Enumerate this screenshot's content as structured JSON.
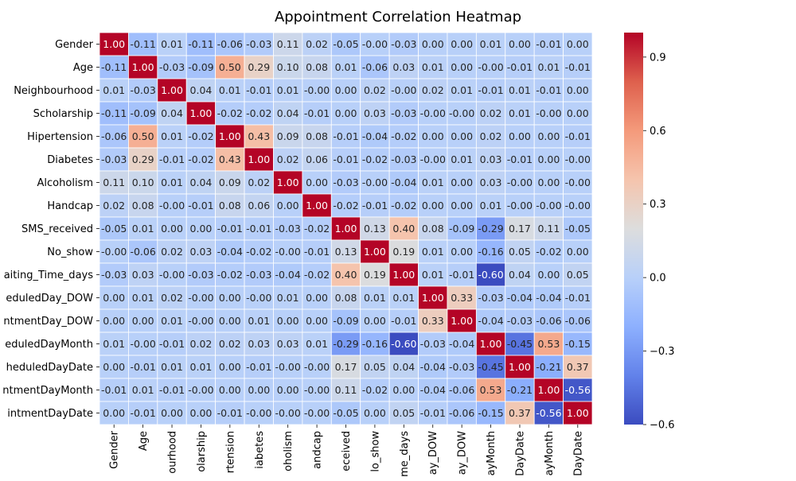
{
  "chart_data": {
    "type": "heatmap",
    "title": "Appointment Correlation Heatmap",
    "xlabel": "",
    "ylabel": "",
    "row_labels": [
      "Gender",
      "Age",
      "Neighbourhood",
      "Scholarship",
      "Hipertension",
      "Diabetes",
      "Alcoholism",
      "Handcap",
      "SMS_received",
      "No_show",
      "aiting_Time_days",
      "eduledDay_DOW",
      "ntmentDay_DOW",
      "eduledDayMonth",
      "heduledDayDate",
      "ntmentDayMonth",
      "intmentDayDate"
    ],
    "col_labels": [
      "Gender",
      "Age",
      "ourhood",
      "olarship",
      "rtension",
      "iabetes",
      "oholism",
      "andcap",
      "eceived",
      "lo_show",
      "me_days",
      "ay_DOW",
      "ay_DOW",
      "ayMonth",
      "DayDate",
      "ayMonth",
      "DayDate"
    ],
    "values": [
      [
        1.0,
        -0.11,
        0.01,
        -0.11,
        -0.06,
        -0.03,
        0.11,
        0.02,
        -0.05,
        -0.0,
        -0.03,
        0.0,
        0.0,
        0.01,
        0.0,
        -0.01,
        0.0
      ],
      [
        -0.11,
        1.0,
        -0.03,
        -0.09,
        0.5,
        0.29,
        0.1,
        0.08,
        0.01,
        -0.06,
        0.03,
        0.01,
        0.0,
        -0.0,
        -0.01,
        0.01,
        -0.01
      ],
      [
        0.01,
        -0.03,
        1.0,
        0.04,
        0.01,
        -0.01,
        0.01,
        -0.0,
        0.0,
        0.02,
        -0.0,
        0.02,
        0.01,
        -0.01,
        0.01,
        -0.01,
        0.0
      ],
      [
        -0.11,
        -0.09,
        0.04,
        1.0,
        -0.02,
        -0.02,
        0.04,
        -0.01,
        0.0,
        0.03,
        -0.03,
        -0.0,
        -0.0,
        0.02,
        0.01,
        -0.0,
        0.0
      ],
      [
        -0.06,
        0.5,
        0.01,
        -0.02,
        1.0,
        0.43,
        0.09,
        0.08,
        -0.01,
        -0.04,
        -0.02,
        0.0,
        0.0,
        0.02,
        0.0,
        0.0,
        -0.01
      ],
      [
        -0.03,
        0.29,
        -0.01,
        -0.02,
        0.43,
        1.0,
        0.02,
        0.06,
        -0.01,
        -0.02,
        -0.03,
        -0.0,
        0.01,
        0.03,
        -0.01,
        0.0,
        -0.0
      ],
      [
        0.11,
        0.1,
        0.01,
        0.04,
        0.09,
        0.02,
        1.0,
        0.0,
        -0.03,
        -0.0,
        -0.04,
        0.01,
        0.0,
        0.03,
        -0.0,
        0.0,
        -0.0
      ],
      [
        0.02,
        0.08,
        -0.0,
        -0.01,
        0.08,
        0.06,
        0.0,
        1.0,
        -0.02,
        -0.01,
        -0.02,
        0.0,
        0.0,
        0.01,
        -0.0,
        -0.0,
        -0.0
      ],
      [
        -0.05,
        0.01,
        0.0,
        0.0,
        -0.01,
        -0.01,
        -0.03,
        -0.02,
        1.0,
        0.13,
        0.4,
        0.08,
        -0.09,
        -0.29,
        0.17,
        0.11,
        -0.05
      ],
      [
        -0.0,
        -0.06,
        0.02,
        0.03,
        -0.04,
        -0.02,
        -0.0,
        -0.01,
        0.13,
        1.0,
        0.19,
        0.01,
        0.0,
        -0.16,
        0.05,
        -0.02,
        0.0
      ],
      [
        -0.03,
        0.03,
        -0.0,
        -0.03,
        -0.02,
        -0.03,
        -0.04,
        -0.02,
        0.4,
        0.19,
        1.0,
        0.01,
        -0.01,
        -0.6,
        0.04,
        0.0,
        0.05
      ],
      [
        0.0,
        0.01,
        0.02,
        -0.0,
        0.0,
        -0.0,
        0.01,
        0.0,
        0.08,
        0.01,
        0.01,
        1.0,
        0.33,
        -0.03,
        -0.04,
        -0.04,
        -0.01
      ],
      [
        0.0,
        0.0,
        0.01,
        -0.0,
        0.0,
        0.01,
        0.0,
        0.0,
        -0.09,
        0.0,
        -0.01,
        0.33,
        1.0,
        -0.04,
        -0.03,
        -0.06,
        -0.06
      ],
      [
        0.01,
        -0.0,
        -0.01,
        0.02,
        0.02,
        0.03,
        0.03,
        0.01,
        -0.29,
        -0.16,
        -0.6,
        -0.03,
        -0.04,
        1.0,
        -0.45,
        0.53,
        -0.15
      ],
      [
        0.0,
        -0.01,
        0.01,
        0.01,
        0.0,
        -0.01,
        -0.0,
        -0.0,
        0.17,
        0.05,
        0.04,
        -0.04,
        -0.03,
        -0.45,
        1.0,
        -0.21,
        0.37
      ],
      [
        -0.01,
        0.01,
        -0.01,
        -0.0,
        0.0,
        0.0,
        0.0,
        -0.0,
        0.11,
        -0.02,
        0.0,
        -0.04,
        -0.06,
        0.53,
        -0.21,
        1.0,
        -0.56
      ],
      [
        0.0,
        -0.01,
        0.0,
        0.0,
        -0.01,
        -0.0,
        -0.0,
        -0.0,
        -0.05,
        0.0,
        0.05,
        -0.01,
        -0.06,
        -0.15,
        0.37,
        -0.56,
        1.0
      ]
    ],
    "colormap": "coolwarm",
    "vmin": -0.6,
    "vmax": 1.0,
    "colorbar_ticks": [
      0.9,
      0.6,
      0.3,
      0.0,
      -0.3,
      -0.6
    ],
    "colorbar_tick_labels": [
      "0.9",
      "0.6",
      "0.3",
      "0.0",
      "−0.3",
      "−0.6"
    ],
    "annotations": true,
    "value_format": "2 decimals",
    "cell_border_color": "#ffffff",
    "grid": false,
    "legend": "colorbar-right"
  }
}
